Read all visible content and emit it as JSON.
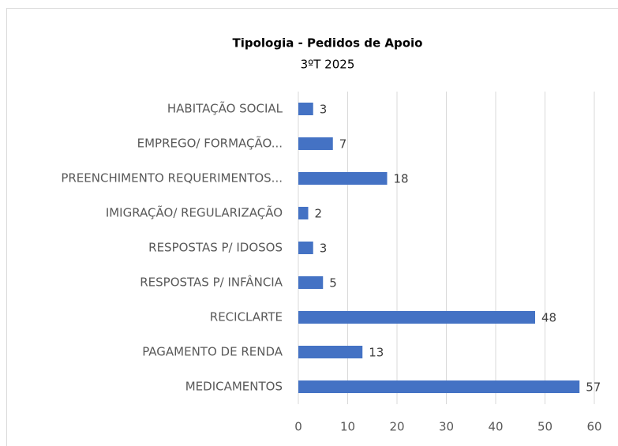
{
  "chart_data": {
    "type": "bar",
    "orientation": "horizontal",
    "title": "Tipologia - Pedidos de Apoio",
    "subtitle": "3ºT 2025",
    "categories": [
      "HABITAÇÃO SOCIAL",
      "EMPREGO/ FORMAÇÃO...",
      "PREENCHIMENTO REQUERIMENTOS...",
      "IMIGRAÇÃO/ REGULARIZAÇÃO",
      "RESPOSTAS P/ IDOSOS",
      "RESPOSTAS P/ INFÂNCIA",
      "RECICLARTE",
      "PAGAMENTO DE RENDA",
      "MEDICAMENTOS"
    ],
    "values": [
      3,
      7,
      18,
      2,
      3,
      5,
      48,
      13,
      57
    ],
    "color": "#4472c4",
    "xlim": [
      0,
      60
    ],
    "xticks": [
      0,
      10,
      20,
      30,
      40,
      50,
      60
    ],
    "grid": true
  }
}
